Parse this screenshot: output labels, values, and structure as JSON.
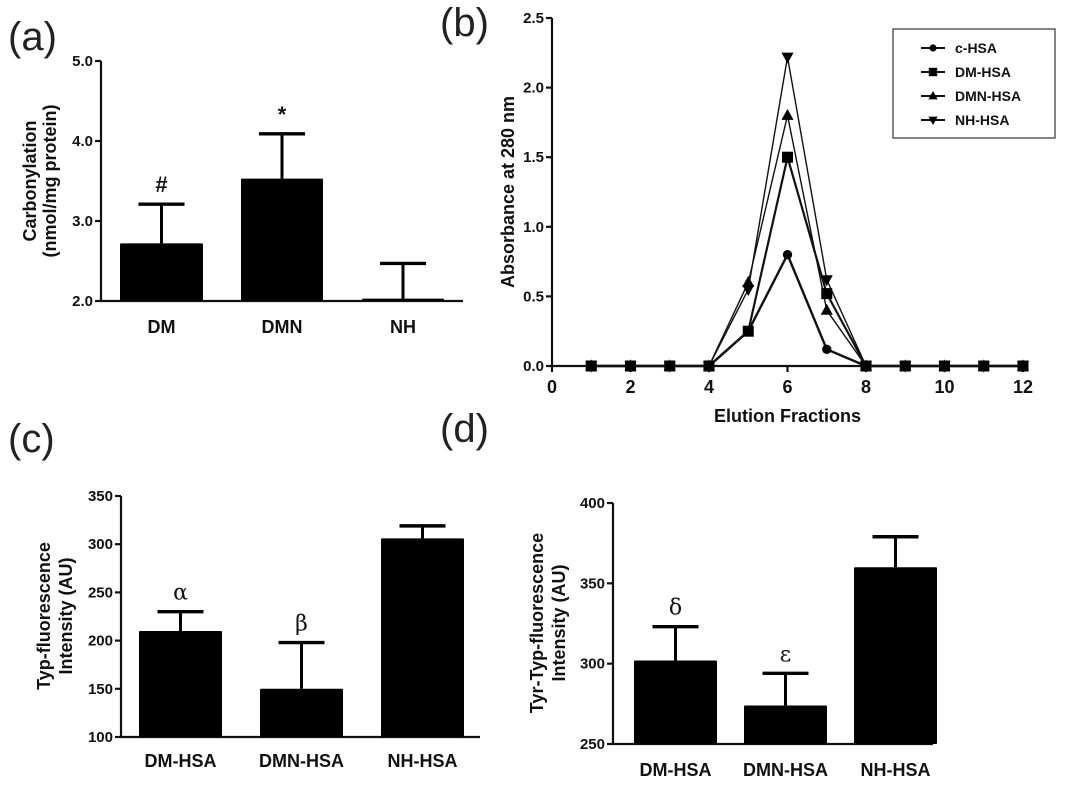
{
  "chart_data": [
    {
      "panel": "(a)",
      "type": "bar",
      "title": "",
      "xlabel": "",
      "ylabel": [
        "Carbonylation",
        "(nmol/mg protein)"
      ],
      "categories": [
        "DM",
        "DMN",
        "NH"
      ],
      "values": [
        2.72,
        3.53,
        2.03
      ],
      "error_upper": [
        3.21,
        4.09,
        2.47
      ],
      "annotations": [
        "#",
        "*",
        ""
      ],
      "ylim": [
        2.0,
        5.0
      ],
      "yticks": [
        "2.0",
        "3.0",
        "4.0",
        "5.0"
      ],
      "ytick_values": [
        2.0,
        3.0,
        4.0,
        5.0
      ],
      "grid": false
    },
    {
      "panel": "(b)",
      "type": "line",
      "title": "",
      "xlabel": "Elution Fractions",
      "ylabel": [
        "Absorbance at 280 nm"
      ],
      "xlim": [
        0,
        12
      ],
      "ylim": [
        0,
        2.5
      ],
      "xticks": [
        "0",
        "2",
        "4",
        "6",
        "8",
        "10",
        "12"
      ],
      "xtick_values": [
        0,
        2,
        4,
        6,
        8,
        10,
        12
      ],
      "yticks": [
        "0.0",
        "0.5",
        "1.0",
        "1.5",
        "2.0",
        "2.5"
      ],
      "ytick_values": [
        0,
        0.5,
        1.0,
        1.5,
        2.0,
        2.5
      ],
      "x": [
        1,
        2,
        3,
        4,
        5,
        6,
        7,
        8,
        9,
        10,
        11,
        12
      ],
      "series": [
        {
          "name": "c-HSA",
          "marker": "circle",
          "values": [
            0,
            0,
            0,
            0,
            0.25,
            0.8,
            0.12,
            0,
            0,
            0,
            0,
            0
          ]
        },
        {
          "name": "DM-HSA",
          "marker": "square",
          "values": [
            0,
            0,
            0,
            0,
            0.25,
            1.5,
            0.52,
            0,
            0,
            0,
            0,
            0
          ]
        },
        {
          "name": "DMN-HSA",
          "marker": "triangle-up",
          "values": [
            0,
            0,
            0,
            0,
            0.6,
            1.8,
            0.4,
            0,
            0,
            0,
            0,
            0
          ]
        },
        {
          "name": "NH-HSA",
          "marker": "triangle-down",
          "values": [
            0,
            0,
            0,
            0,
            0.55,
            2.22,
            0.62,
            0,
            0,
            0,
            0,
            0
          ]
        }
      ],
      "legend_position": "top-right",
      "grid": false
    },
    {
      "panel": "(c)",
      "type": "bar",
      "title": "",
      "xlabel": "",
      "ylabel": [
        "Typ-fluorescence",
        "Intensity (AU)"
      ],
      "categories": [
        "DM-HSA",
        "DMN-HSA",
        "NH-HSA"
      ],
      "values": [
        210,
        150,
        306
      ],
      "error_upper": [
        230,
        198,
        319
      ],
      "annotations": [
        "α",
        "β",
        ""
      ],
      "ylim": [
        100,
        350
      ],
      "yticks": [
        "100",
        "150",
        "200",
        "250",
        "300",
        "350"
      ],
      "ytick_values": [
        100,
        150,
        200,
        250,
        300,
        350
      ],
      "grid": false
    },
    {
      "panel": "(d)",
      "type": "bar",
      "title": "",
      "xlabel": "",
      "ylabel": [
        "Tyr-Typ-fluorescence",
        "Intensity (AU)"
      ],
      "categories": [
        "DM-HSA",
        "DMN-HSA",
        "NH-HSA"
      ],
      "values": [
        302,
        274,
        360
      ],
      "error_upper": [
        323,
        294,
        379
      ],
      "annotations": [
        "δ",
        "ε",
        ""
      ],
      "ylim": [
        250,
        400
      ],
      "yticks": [
        "250",
        "300",
        "350",
        "400"
      ],
      "ytick_values": [
        250,
        300,
        350,
        400
      ],
      "grid": false
    }
  ]
}
